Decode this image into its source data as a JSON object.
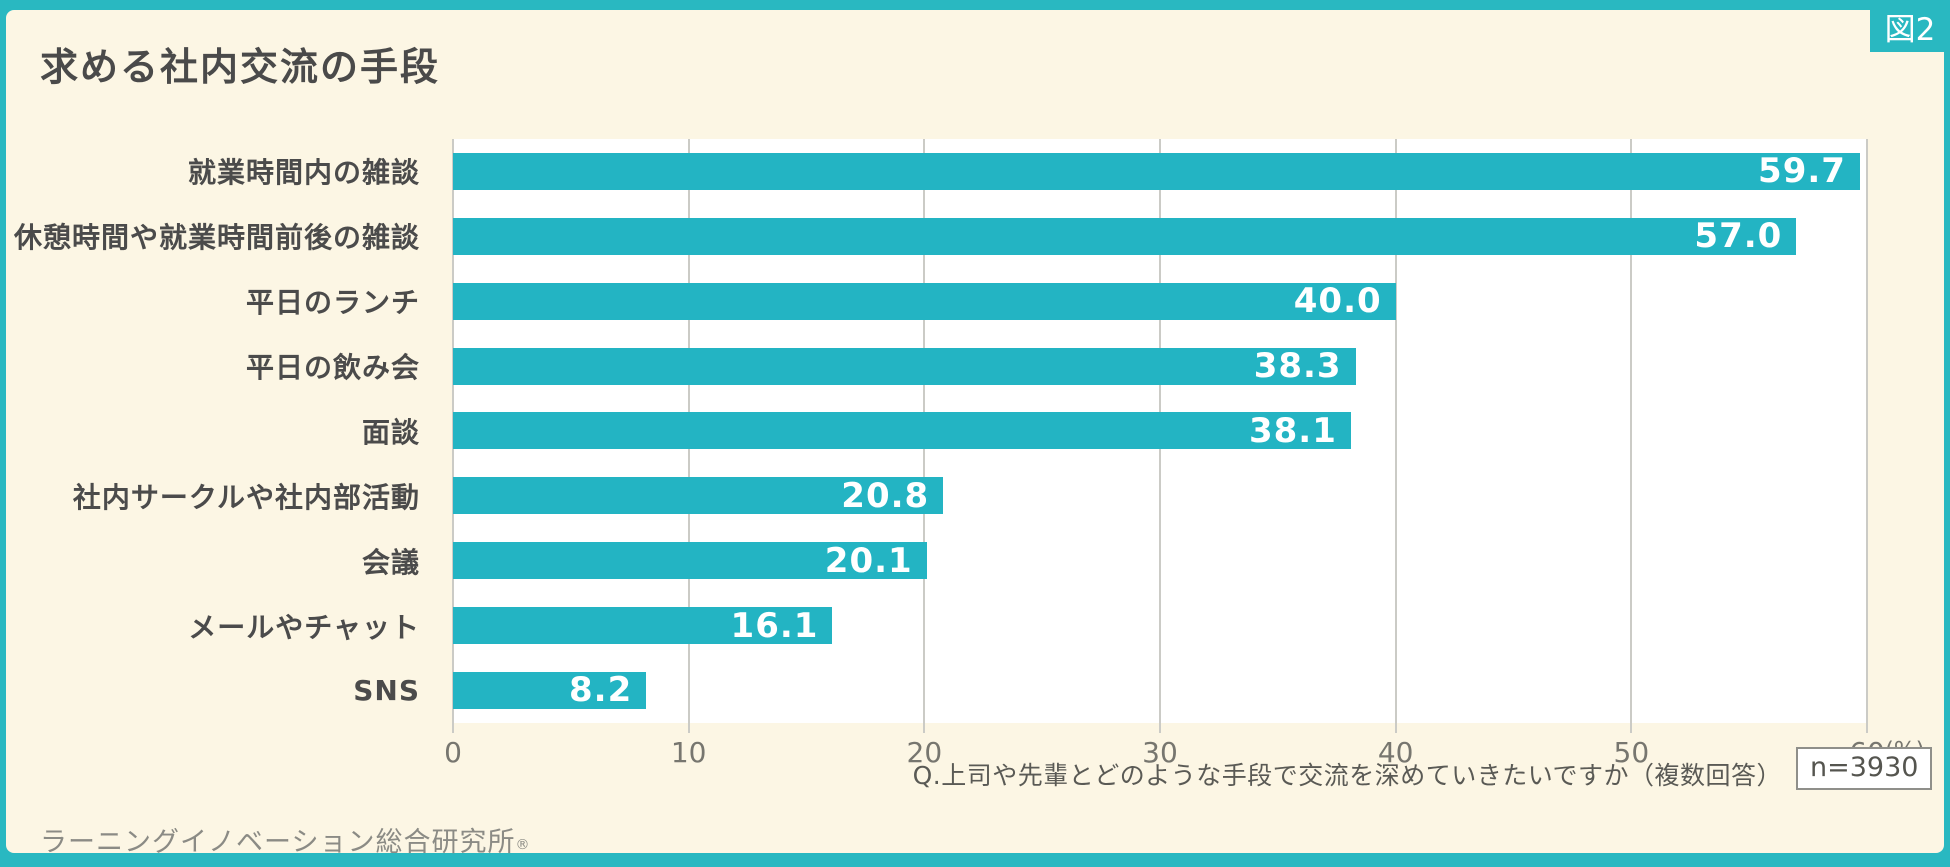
{
  "figure_label": "図2",
  "title": "求める社内交流の手段",
  "chart_data": {
    "type": "bar",
    "orientation": "horizontal",
    "categories": [
      "就業時間内の雑談",
      "休憩時間や就業時間前後の雑談",
      "平日のランチ",
      "平日の飲み会",
      "面談",
      "社内サークルや社内部活動",
      "会議",
      "メールやチャット",
      "SNS"
    ],
    "values": [
      59.7,
      57.0,
      40.0,
      38.3,
      38.1,
      20.8,
      20.1,
      16.1,
      8.2
    ],
    "value_labels": [
      "59.7",
      "57.0",
      "40.0",
      "38.3",
      "38.1",
      "20.8",
      "20.1",
      "16.1",
      "8.2"
    ],
    "xlim": [
      0,
      60
    ],
    "x_ticks": [
      0,
      10,
      20,
      30,
      40,
      50,
      60
    ],
    "x_unit": "(%)",
    "grid": true,
    "title": "求める社内交流の手段",
    "xlabel": "",
    "ylabel": ""
  },
  "footer": {
    "question": "Q.上司や先輩とどのような手段で交流を深めていきたいですか（複数回答）",
    "sample_size": "n=3930",
    "source": "ラーニングイノベーション総合研究所",
    "registered_mark": "®"
  },
  "colors": {
    "frame": "#29B8C1",
    "panel_background": "#FCF6E4",
    "bar": "#23B4C3",
    "plot_background": "#FFFFFF",
    "gridline": "#CBCBC6",
    "title_text": "#4A4A4A",
    "value_text": "#FFFFFF"
  }
}
